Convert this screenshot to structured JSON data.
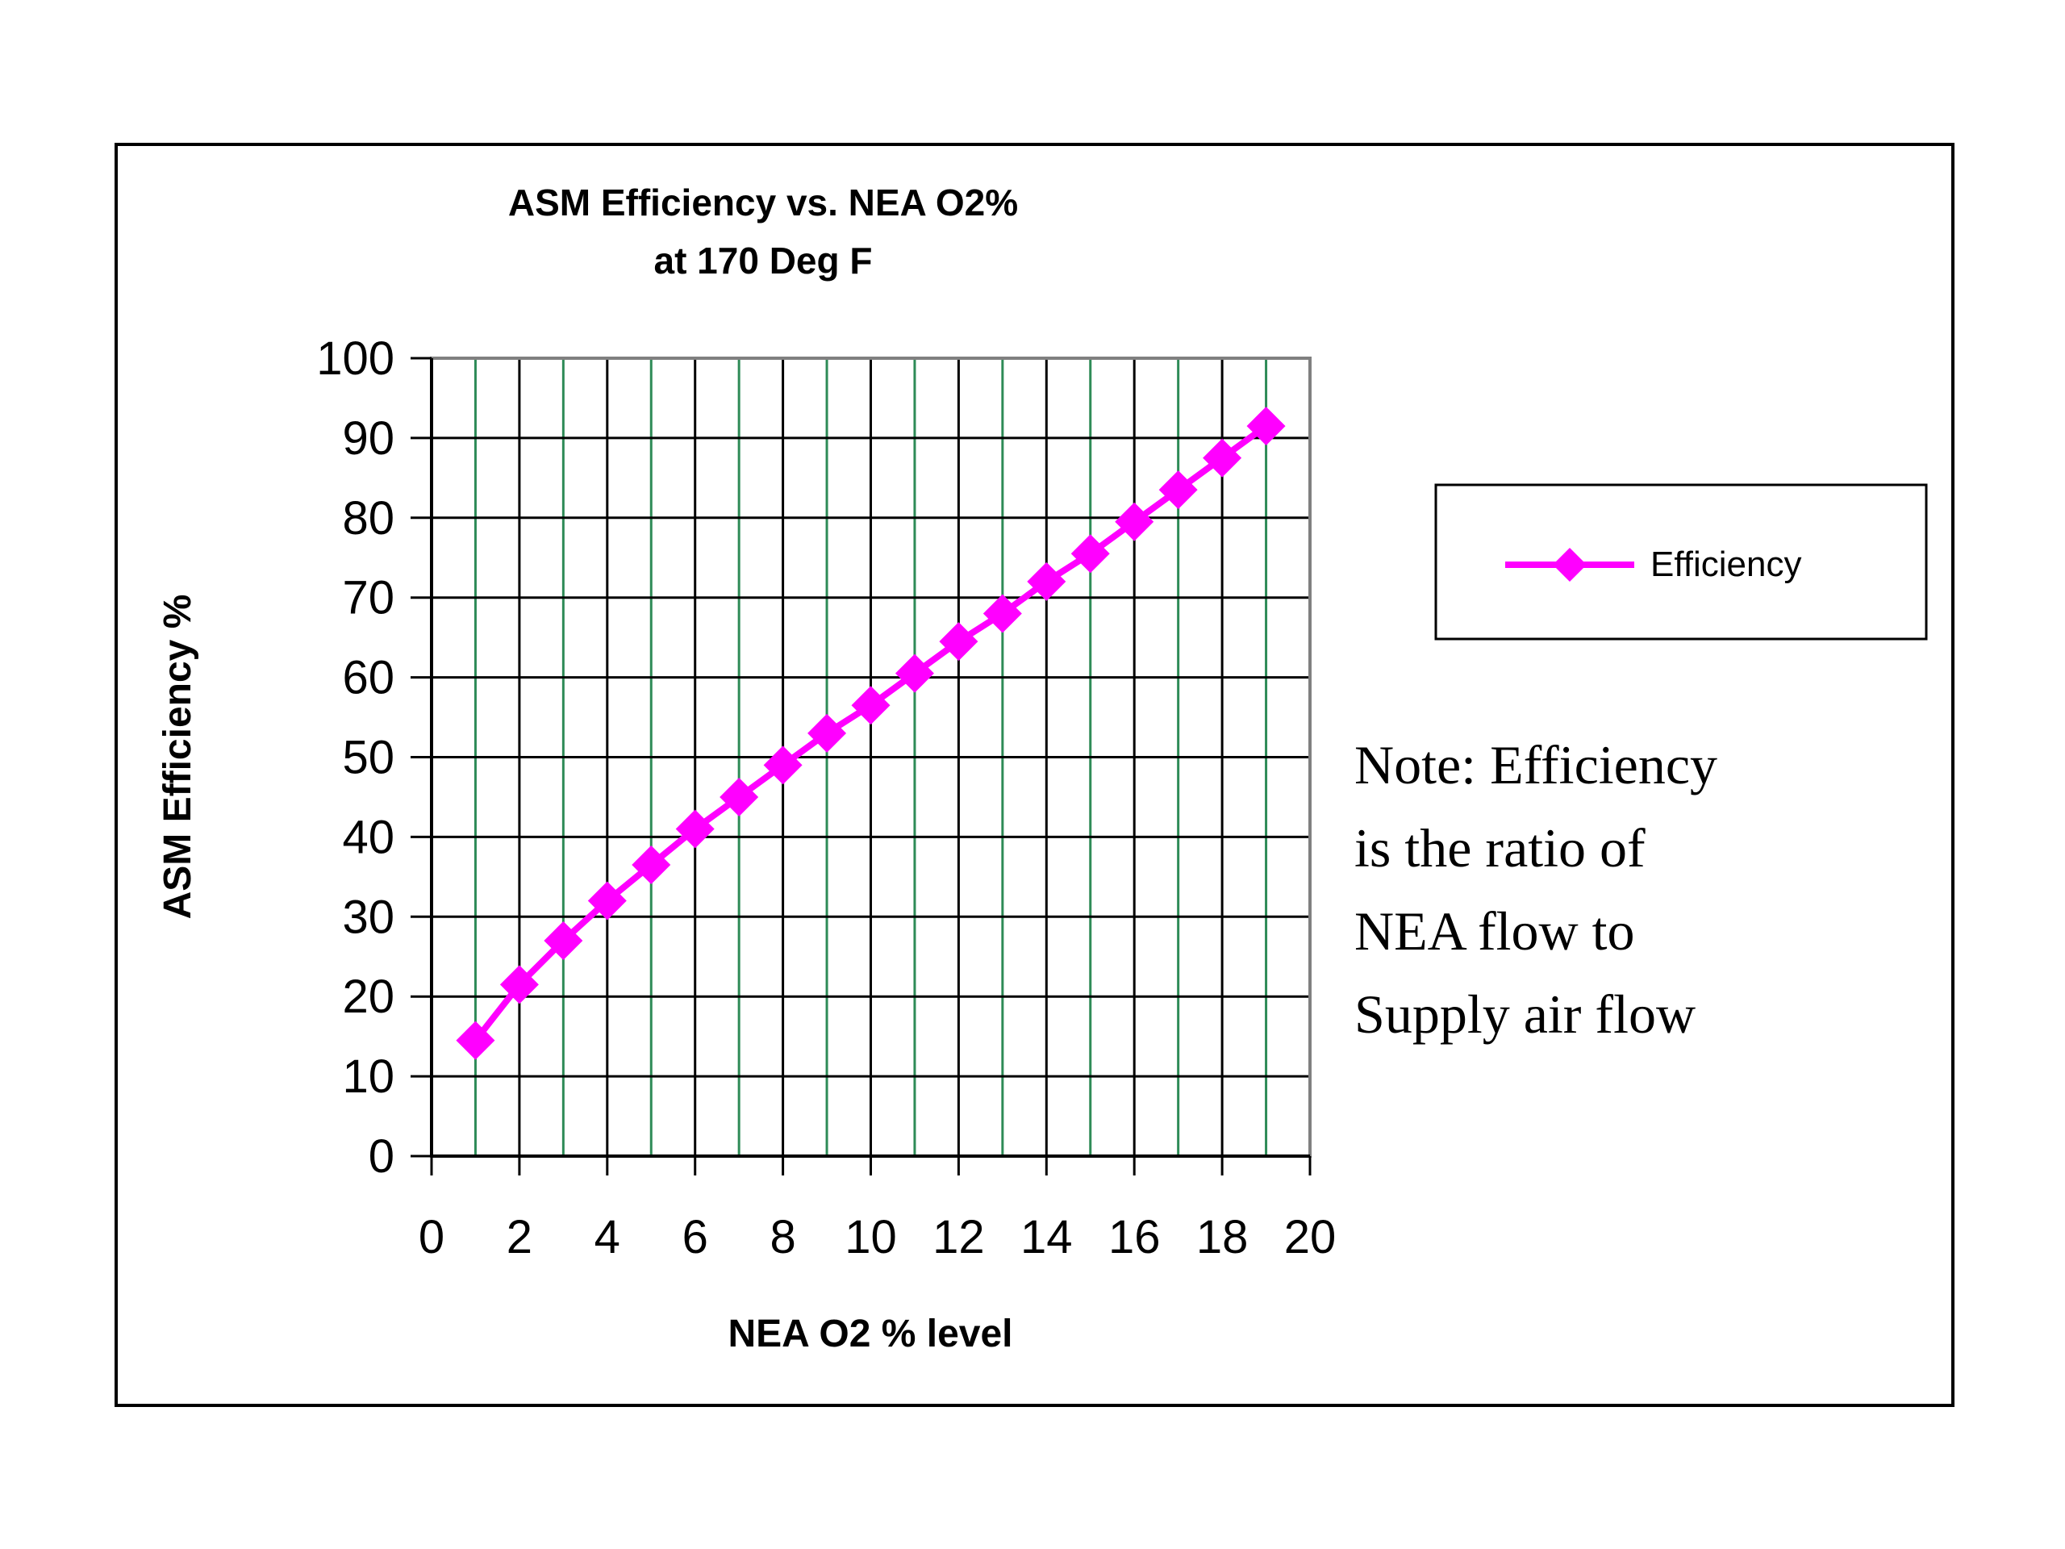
{
  "chart_data": {
    "type": "line",
    "title": [
      "ASM Efficiency vs. NEA O2%",
      "at 170 Deg F"
    ],
    "xlabel": "NEA O2 % level",
    "ylabel": "ASM Efficiency %",
    "xlim": [
      0,
      20
    ],
    "ylim": [
      0,
      100
    ],
    "x_ticks": [
      "0",
      "2",
      "4",
      "6",
      "8",
      "10",
      "12",
      "14",
      "16",
      "18",
      "20"
    ],
    "y_ticks": [
      "0",
      "10",
      "20",
      "30",
      "40",
      "50",
      "60",
      "70",
      "80",
      "90",
      "100"
    ],
    "grid": true,
    "legend": "right",
    "series": [
      {
        "name": "Efficiency",
        "color": "#ff00ff",
        "marker": "diamond",
        "x": [
          1,
          2,
          3,
          4,
          5,
          6,
          7,
          8,
          9,
          10,
          11,
          12,
          13,
          14,
          15,
          16,
          17,
          18,
          19
        ],
        "y": [
          14.5,
          21.5,
          27,
          32,
          36.5,
          41,
          45,
          49,
          53,
          56.5,
          60.5,
          64.5,
          68,
          72,
          75.5,
          79.5,
          83.5,
          87.5,
          91.5
        ]
      }
    ],
    "annotation": [
      "Note: Efficiency",
      "is the ratio of",
      "NEA flow to",
      "Supply air flow"
    ]
  },
  "colors": {
    "major_grid": "#000000",
    "minor_grid": "#2e8b57",
    "series": "#ff00ff"
  }
}
